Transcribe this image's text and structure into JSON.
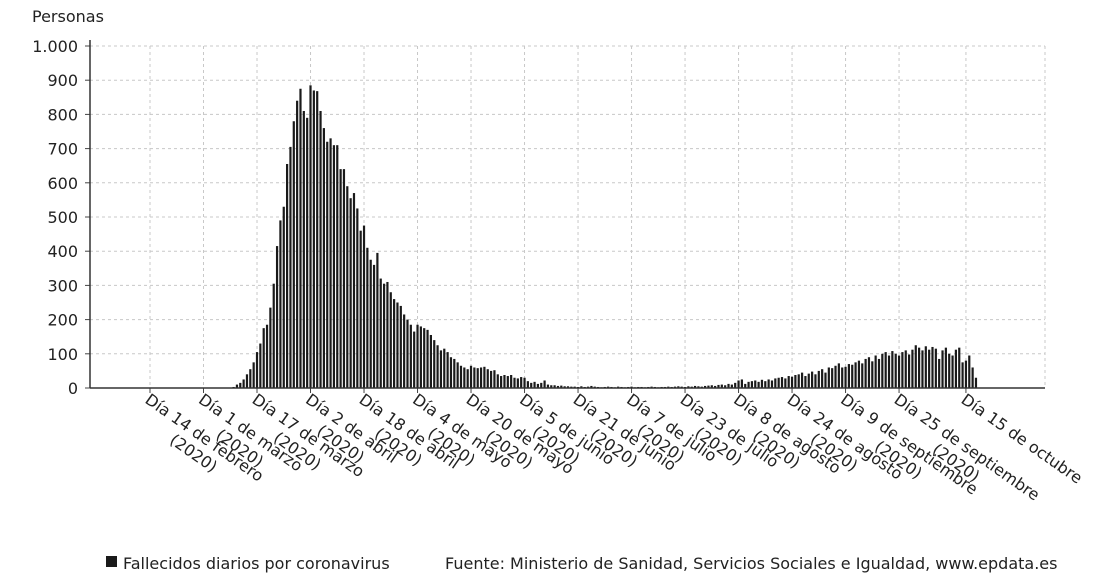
{
  "chart_data": {
    "type": "bar",
    "y_label": "Personas",
    "legend": "Fallecidos diarios por coronavirus",
    "source": "Fuente: Ministerio de Sanidad, Servicios Sociales e Igualdad, www.epdata.es",
    "color": "#1a1a1a",
    "grid": true,
    "ylim": [
      0,
      1000
    ],
    "yticks": [
      0,
      100,
      200,
      300,
      400,
      500,
      600,
      700,
      800,
      900,
      {
        "value": 1000,
        "label": "1.000"
      }
    ],
    "categories": [
      "Día 14 de febrero\n(2020)",
      null,
      null,
      null,
      null,
      null,
      null,
      null,
      null,
      null,
      null,
      null,
      null,
      null,
      null,
      null,
      "Día 1 de marzo\n(2020)",
      null,
      null,
      null,
      null,
      null,
      null,
      null,
      null,
      null,
      null,
      null,
      null,
      null,
      null,
      null,
      "Día 17 de marzo\n(2020)",
      null,
      null,
      null,
      null,
      null,
      null,
      null,
      null,
      null,
      null,
      null,
      null,
      null,
      null,
      null,
      "Día 2 de abril\n(2020)",
      null,
      null,
      null,
      null,
      null,
      null,
      null,
      null,
      null,
      null,
      null,
      null,
      null,
      null,
      null,
      "Día 18 de abril\n(2020)",
      null,
      null,
      null,
      null,
      null,
      null,
      null,
      null,
      null,
      null,
      null,
      null,
      null,
      null,
      null,
      "Día 4 de mayo\n(2020)",
      null,
      null,
      null,
      null,
      null,
      null,
      null,
      null,
      null,
      null,
      null,
      null,
      null,
      null,
      null,
      "Día 20 de mayo\n(2020)",
      null,
      null,
      null,
      null,
      null,
      null,
      null,
      null,
      null,
      null,
      null,
      null,
      null,
      null,
      null,
      "Día 5 de junio\n(2020)",
      null,
      null,
      null,
      null,
      null,
      null,
      null,
      null,
      null,
      null,
      null,
      null,
      null,
      null,
      null,
      "Día 21 de junio\n(2020)",
      null,
      null,
      null,
      null,
      null,
      null,
      null,
      null,
      null,
      null,
      null,
      null,
      null,
      null,
      null,
      "Día 7 de julio\n(2020)",
      null,
      null,
      null,
      null,
      null,
      null,
      null,
      null,
      null,
      null,
      null,
      null,
      null,
      null,
      null,
      "Día 23 de julio\n(2020)",
      null,
      null,
      null,
      null,
      null,
      null,
      null,
      null,
      null,
      null,
      null,
      null,
      null,
      null,
      null,
      "Día 8 de agosto\n(2020)",
      null,
      null,
      null,
      null,
      null,
      null,
      null,
      null,
      null,
      null,
      null,
      null,
      null,
      null,
      null,
      "Día 24 de agosto\n(2020)",
      null,
      null,
      null,
      null,
      null,
      null,
      null,
      null,
      null,
      null,
      null,
      null,
      null,
      null,
      null,
      "Día 9 de septiembre\n(2020)",
      null,
      null,
      null,
      null,
      null,
      null,
      null,
      null,
      null,
      null,
      null,
      null,
      null,
      null,
      null,
      "Día 25 de septiembre\n(2020)",
      null,
      null,
      null,
      null,
      null,
      null,
      null,
      null,
      null,
      null,
      null,
      null,
      null,
      null,
      null,
      null,
      null,
      null,
      null,
      "Día 15 de octubre",
      null,
      null,
      null
    ],
    "values": [
      0,
      0,
      0,
      0,
      0,
      0,
      0,
      0,
      0,
      0,
      0,
      0,
      0,
      0,
      0,
      0,
      0,
      0,
      0,
      0,
      0,
      0,
      0,
      0,
      0,
      3,
      10,
      15,
      25,
      40,
      55,
      75,
      105,
      130,
      175,
      185,
      235,
      305,
      415,
      490,
      530,
      655,
      705,
      780,
      840,
      875,
      810,
      790,
      885,
      870,
      868,
      810,
      760,
      720,
      730,
      710,
      710,
      640,
      640,
      590,
      555,
      570,
      525,
      460,
      475,
      410,
      375,
      360,
      395,
      320,
      305,
      310,
      280,
      260,
      250,
      240,
      215,
      200,
      185,
      165,
      185,
      180,
      175,
      170,
      155,
      140,
      125,
      110,
      115,
      105,
      90,
      85,
      75,
      65,
      60,
      55,
      65,
      60,
      58,
      60,
      62,
      55,
      50,
      52,
      40,
      35,
      38,
      35,
      38,
      30,
      28,
      32,
      30,
      20,
      15,
      18,
      12,
      15,
      22,
      10,
      8,
      8,
      6,
      7,
      5,
      5,
      4,
      4,
      3,
      5,
      3,
      4,
      6,
      4,
      3,
      2,
      3,
      4,
      3,
      2,
      4,
      3,
      2,
      3,
      4,
      2,
      3,
      3,
      2,
      3,
      4,
      3,
      2,
      3,
      3,
      4,
      3,
      4,
      5,
      4,
      3,
      5,
      4,
      6,
      5,
      4,
      6,
      7,
      8,
      6,
      9,
      10,
      8,
      12,
      10,
      15,
      22,
      25,
      12,
      18,
      20,
      22,
      18,
      24,
      20,
      25,
      22,
      28,
      30,
      32,
      28,
      35,
      33,
      38,
      40,
      45,
      35,
      42,
      48,
      40,
      50,
      55,
      45,
      60,
      58,
      65,
      72,
      60,
      62,
      70,
      68,
      75,
      80,
      72,
      85,
      90,
      78,
      95,
      85,
      100,
      105,
      95,
      108,
      100,
      95,
      105,
      110,
      98,
      112,
      125,
      118,
      110,
      122,
      112,
      120,
      115,
      85,
      110,
      118,
      100,
      95,
      112,
      118,
      75,
      80,
      95,
      60,
      30
    ]
  }
}
